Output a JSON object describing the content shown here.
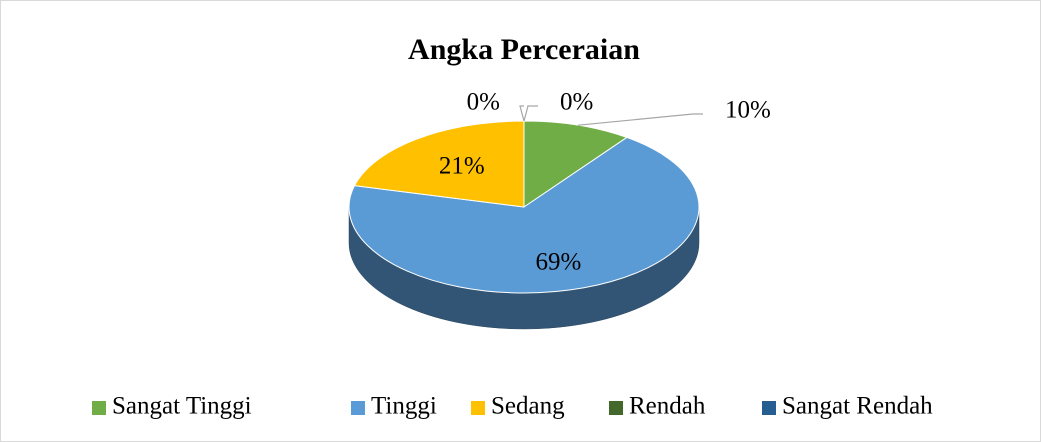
{
  "chart_data": {
    "type": "pie",
    "title": "Angka Perceraian",
    "categories": [
      "Sangat Tinggi",
      "Tinggi",
      "Sedang",
      "Rendah",
      "Sangat Rendah"
    ],
    "values": [
      10,
      69,
      21,
      0,
      0
    ],
    "value_labels": [
      "10%",
      "69%",
      "21%",
      "0%",
      "0%"
    ],
    "colors": [
      "#70ad47",
      "#5b9bd5",
      "#ffc000",
      "#43682b",
      "#255e91"
    ],
    "legend": "bottom"
  }
}
